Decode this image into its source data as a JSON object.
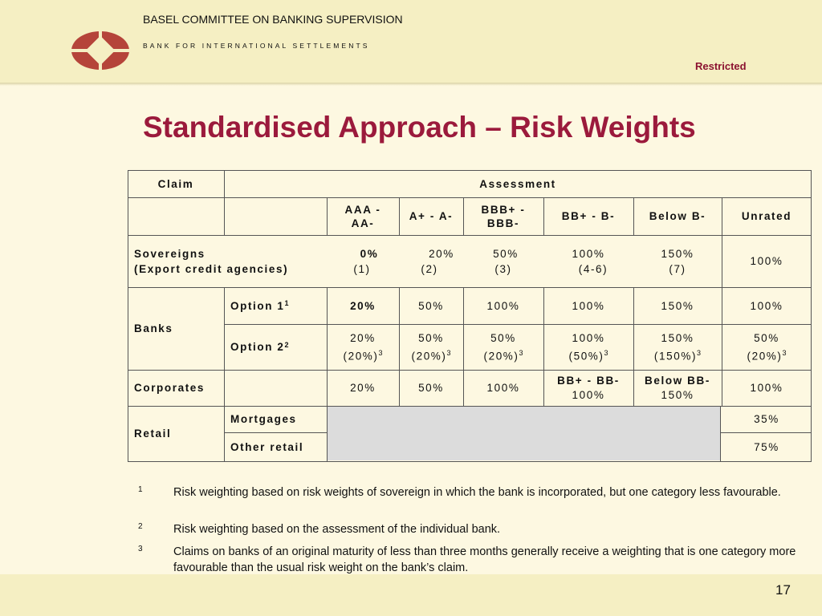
{
  "header": {
    "org_name": "BASEL COMMITTEE ON BANKING SUPERVISION",
    "org_sub": "BANK FOR INTERNATIONAL SETTLEMENTS",
    "classification": "Restricted",
    "brand_color": "#b5443a",
    "logo_icon": "bis-diamond-logo-icon"
  },
  "title": "Standardised Approach – Risk Weights",
  "table": {
    "header": {
      "claim": "Claim",
      "assessment": "Assessment"
    },
    "grades": {
      "aaa_1": "AAA -",
      "aaa_2": "AA-",
      "a": "A+ - A-",
      "bbb_1": "BBB+ -",
      "bbb_2": "BBB-",
      "bb": "BB+ - B-",
      "below": "Below B-",
      "unrated": "Unrated"
    },
    "sovereigns": {
      "label_1": "Sovereigns",
      "label_2": "(Export credit agencies)",
      "aaa": "0%",
      "aaa_eca": "(1)",
      "a": "20%",
      "a_eca": "(2)",
      "bbb": "50%",
      "bbb_eca": "(3)",
      "bb": "100%",
      "bb_eca": "(4-6)",
      "below": "150%",
      "below_eca": "(7)",
      "unrated": "100%"
    },
    "banks": {
      "label": "Banks",
      "option1": {
        "label": "Option 1",
        "sup": "1",
        "aaa": "20%",
        "a": "50%",
        "bbb": "100%",
        "bb": "100%",
        "below": "150%",
        "unrated": "100%"
      },
      "option2": {
        "label": "Option 2",
        "sup": "2",
        "aaa": "20%",
        "aaa_short": "(20%)",
        "a": "50%",
        "a_short": "(20%)",
        "bbb": "50%",
        "bbb_short": "(20%)",
        "bb": "100%",
        "bb_short": "(50%)",
        "below": "150%",
        "below_short": "(150%)",
        "unrated": "50%",
        "unrated_short": "(20%)",
        "short_sup": "3"
      }
    },
    "corporates": {
      "label": "Corporates",
      "aaa": "20%",
      "a": "50%",
      "bbb": "100%",
      "bb_grade": "BB+ - BB-",
      "bb": "100%",
      "below_grade": "Below BB-",
      "below": "150%",
      "unrated": "100%"
    },
    "retail": {
      "label": "Retail",
      "mortgages_label": "Mortgages",
      "mortgages": "35%",
      "other_label": "Other retail",
      "other": "75%"
    }
  },
  "footnotes": [
    {
      "num": "1",
      "text": "Risk weighting based on risk weights of sovereign in which the bank is incorporated, but one category less favourable."
    },
    {
      "num": "2",
      "text": "Risk weighting based on the assessment of the individual bank."
    },
    {
      "num": "3",
      "text": "Claims on banks of an original maturity of less than three months generally receive a weighting that is one category more favourable than the usual risk weight on the bank’s claim."
    }
  ],
  "page_number": "17"
}
